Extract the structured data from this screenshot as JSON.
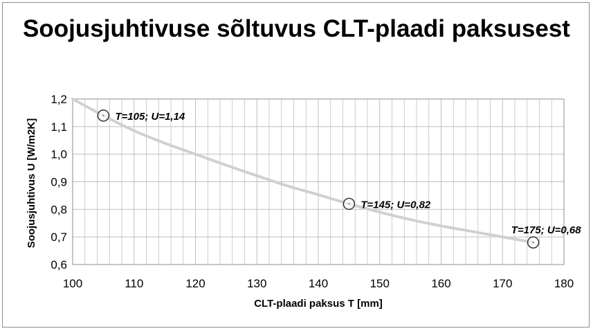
{
  "chart_data": {
    "type": "scatter",
    "title": "Soojusjuhtivuse sõltuvus CLT-plaadi paksusest",
    "xlabel": "CLT-plaadi paksus T [mm]",
    "ylabel": "Soojusjuhtivus U [W/m2K]",
    "xlim": [
      100,
      180
    ],
    "ylim": [
      0.6,
      1.2
    ],
    "x_ticks": [
      100,
      110,
      120,
      130,
      140,
      150,
      160,
      170,
      180
    ],
    "y_ticks": [
      0.6,
      0.7,
      0.8,
      0.9,
      1.0,
      1.1,
      1.2
    ],
    "y_tick_labels": [
      "0,6",
      "0,7",
      "0,8",
      "0,9",
      "1,0",
      "1,1",
      "1,2"
    ],
    "grid": true,
    "series": [
      {
        "points": [
          {
            "x": 105,
            "y": 1.14,
            "label": "T=105; U=1,14"
          },
          {
            "x": 145,
            "y": 0.82,
            "label": "T=145; U=0,82"
          },
          {
            "x": 175,
            "y": 0.68,
            "label": "T=175; U=0,68"
          }
        ]
      }
    ],
    "trendline": {
      "x": [
        100,
        105,
        110,
        115,
        120,
        125,
        130,
        135,
        140,
        145,
        150,
        155,
        160,
        165,
        170,
        175
      ],
      "y": [
        1.2,
        1.14,
        1.085,
        1.04,
        1.0,
        0.96,
        0.922,
        0.885,
        0.853,
        0.82,
        0.79,
        0.763,
        0.74,
        0.72,
        0.7,
        0.68
      ]
    },
    "colors": {
      "trendline": "#d0d0d0",
      "marker_stroke": "#333333",
      "grid": "#bfbfbf",
      "plot_border": "#8c8c8c"
    }
  }
}
